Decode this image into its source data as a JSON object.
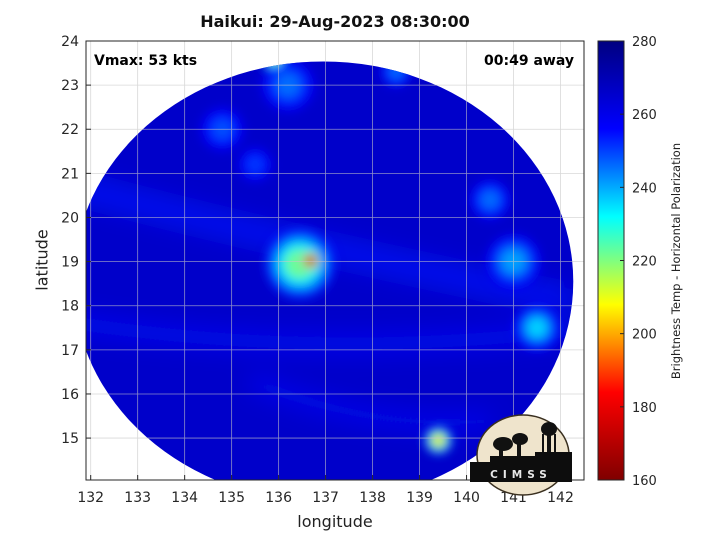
{
  "title": "Haikui: 29-Aug-2023 08:30:00",
  "vmax_text": "Vmax: 53 kts",
  "away_text": "00:49 away",
  "logo_text": "CIMSS",
  "colormap": [
    "#800000",
    "#ff0000",
    "#ffff00",
    "#00ffff",
    "#0000ff",
    "#000080"
  ],
  "chart_data": {
    "type": "heatmap",
    "xlabel": "longitude",
    "ylabel": "latitude",
    "colorbar_label": "Brightness Temp - Horizontal Polarization",
    "xlim": [
      131.9,
      142.5
    ],
    "ylim": [
      14.05,
      24.0
    ],
    "clim": [
      160,
      280
    ],
    "grid": true,
    "x_ticks": [
      "132",
      "133",
      "134",
      "135",
      "136",
      "137",
      "138",
      "139",
      "140",
      "141",
      "142"
    ],
    "y_ticks": [
      "15",
      "16",
      "17",
      "18",
      "19",
      "20",
      "21",
      "22",
      "23",
      "24"
    ],
    "colorbar_ticks": [
      "160",
      "180",
      "200",
      "220",
      "240",
      "260",
      "280"
    ],
    "swath_center": {
      "lon": 136.95,
      "lat": 18.55
    },
    "eye_center": {
      "lon": 136.68,
      "lat": 19.02
    },
    "background_value": 266,
    "features": [
      {
        "lon": 136.68,
        "lat": 19.02,
        "value": 165,
        "radius_deg": 0.22
      },
      {
        "lon": 136.45,
        "lat": 18.95,
        "value": 220,
        "radius_deg": 0.75
      },
      {
        "lon": 139.4,
        "lat": 14.95,
        "value": 205,
        "radius_deg": 0.3
      },
      {
        "lon": 141.5,
        "lat": 17.5,
        "value": 235,
        "radius_deg": 0.5
      },
      {
        "lon": 141.0,
        "lat": 19.0,
        "value": 240,
        "radius_deg": 0.6
      },
      {
        "lon": 140.5,
        "lat": 20.4,
        "value": 245,
        "radius_deg": 0.45
      },
      {
        "lon": 135.9,
        "lat": 23.6,
        "value": 215,
        "radius_deg": 0.25
      },
      {
        "lon": 136.2,
        "lat": 23.0,
        "value": 245,
        "radius_deg": 0.6
      },
      {
        "lon": 134.8,
        "lat": 22.0,
        "value": 248,
        "radius_deg": 0.5
      },
      {
        "lon": 135.5,
        "lat": 21.2,
        "value": 250,
        "radius_deg": 0.4
      },
      {
        "lon": 138.5,
        "lat": 23.3,
        "value": 245,
        "radius_deg": 0.35
      }
    ]
  }
}
